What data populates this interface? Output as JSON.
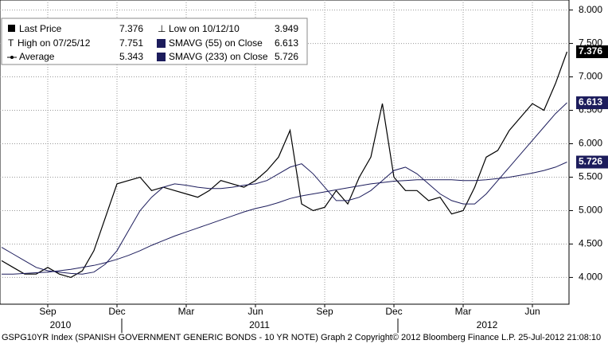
{
  "chart_data": {
    "type": "line",
    "footer": "GSPG10YR Index (SPANISH GOVERNMENT GENERIC BONDS - 10 YR NOTE) Graph 2  Copyright© 2012 Bloomberg Finance L.P.  25-Jul-2012 21:08:10",
    "categories": [
      null,
      null,
      null,
      null,
      "Sep",
      null,
      null,
      null,
      null,
      null,
      "Dec",
      null,
      null,
      null,
      null,
      null,
      "Mar",
      null,
      null,
      null,
      null,
      null,
      "Jun",
      null,
      null,
      null,
      null,
      null,
      "Sep",
      null,
      null,
      null,
      null,
      null,
      "Dec",
      null,
      null,
      null,
      null,
      null,
      "Mar",
      null,
      null,
      null,
      null,
      null,
      "Jun",
      null,
      null,
      null
    ],
    "years": [
      "2010",
      "2011",
      "2012"
    ],
    "series": [
      {
        "name": "Last Price",
        "color": "#000000",
        "values": [
          4.25,
          4.15,
          4.05,
          4.05,
          4.15,
          4.05,
          4.0,
          4.1,
          4.4,
          4.9,
          5.4,
          5.45,
          5.5,
          5.3,
          5.35,
          5.3,
          5.25,
          5.2,
          5.3,
          5.45,
          5.4,
          5.35,
          5.45,
          5.6,
          5.8,
          6.2,
          5.1,
          5.0,
          5.05,
          5.3,
          5.1,
          5.5,
          5.8,
          6.6,
          5.5,
          5.3,
          5.3,
          5.15,
          5.2,
          4.95,
          5.0,
          5.35,
          5.8,
          5.9,
          6.2,
          6.4,
          6.6,
          6.5,
          6.9,
          7.376
        ]
      },
      {
        "name": "SMAVG (55) on Close",
        "color": "#1c1c5c",
        "values": [
          4.45,
          4.35,
          4.25,
          4.15,
          4.1,
          4.08,
          4.06,
          4.05,
          4.08,
          4.2,
          4.4,
          4.7,
          5.0,
          5.2,
          5.35,
          5.4,
          5.38,
          5.35,
          5.33,
          5.33,
          5.35,
          5.38,
          5.4,
          5.45,
          5.55,
          5.65,
          5.7,
          5.55,
          5.35,
          5.15,
          5.15,
          5.2,
          5.3,
          5.45,
          5.6,
          5.65,
          5.55,
          5.4,
          5.25,
          5.15,
          5.1,
          5.1,
          5.25,
          5.45,
          5.65,
          5.85,
          6.05,
          6.25,
          6.45,
          6.613
        ]
      },
      {
        "name": "SMAVG (233) on Close",
        "color": "#1c1c5c",
        "values": [
          4.05,
          4.05,
          4.06,
          4.07,
          4.08,
          4.1,
          4.12,
          4.15,
          4.18,
          4.22,
          4.27,
          4.33,
          4.4,
          4.48,
          4.55,
          4.62,
          4.68,
          4.74,
          4.8,
          4.86,
          4.92,
          4.98,
          5.03,
          5.07,
          5.12,
          5.18,
          5.22,
          5.25,
          5.28,
          5.31,
          5.34,
          5.37,
          5.4,
          5.42,
          5.44,
          5.45,
          5.46,
          5.46,
          5.46,
          5.46,
          5.45,
          5.45,
          5.46,
          5.48,
          5.5,
          5.53,
          5.56,
          5.6,
          5.65,
          5.726
        ]
      }
    ],
    "legend_stats": {
      "last_price": 7.376,
      "high_label": "High on 07/25/12",
      "high": 7.751,
      "average_label": "Average",
      "average": 5.343,
      "low_label": "Low on 10/12/10",
      "low": 3.949
    },
    "ylim": [
      3.6,
      8.15
    ],
    "yticks": [
      {
        "value": 4,
        "label": "4.000"
      },
      {
        "value": 4.5,
        "label": "4.500"
      },
      {
        "value": 5,
        "label": "5.000"
      },
      {
        "value": 5.5,
        "label": "5.500"
      },
      {
        "value": 6,
        "label": "6.000"
      },
      {
        "value": 6.5,
        "label": "6.500"
      },
      {
        "value": 7,
        "label": "7.000"
      },
      {
        "value": 7.5,
        "label": "7.500"
      },
      {
        "value": 8,
        "label": "8.000"
      }
    ],
    "grid": true
  }
}
